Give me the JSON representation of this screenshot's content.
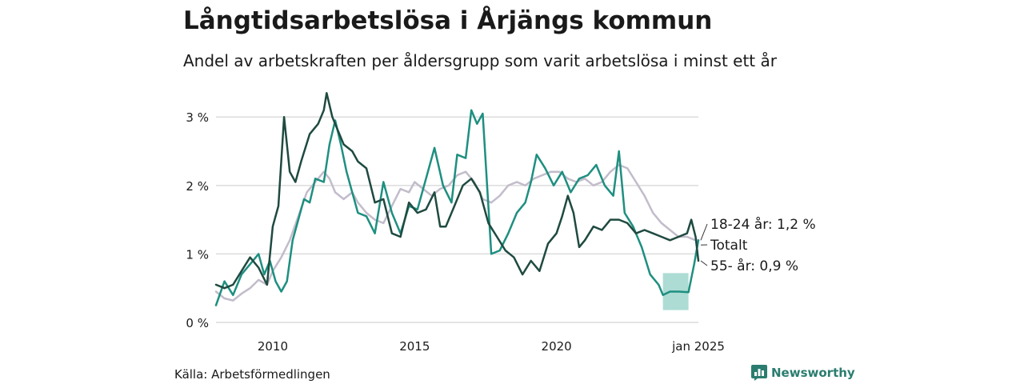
{
  "title": "Långtidsarbetslösa i Årjängs kommun",
  "subtitle": "Andel av arbetskraften per åldersgrupp som varit arbetslösa i minst ett år",
  "source": "Källa: Arbetsförmedlingen",
  "brand": "Newsworthy",
  "colors": {
    "total": "#c2bccb",
    "young": "#1e8f80",
    "old": "#1f4a40",
    "band": "#9fd6cc",
    "grid": "#dcdcdc"
  },
  "chart_data": {
    "type": "line",
    "x_unit": "year (decimal)",
    "xlim": [
      2008.0,
      2025.0
    ],
    "ylim": [
      0,
      3.4
    ],
    "y_ticks": [
      0,
      1,
      2,
      3
    ],
    "y_tick_labels": [
      "0 %",
      "1 %",
      "2 %",
      "3 %"
    ],
    "x_ticks": [
      2010,
      2015,
      2020,
      2025
    ],
    "x_tick_labels": [
      "2010",
      "2015",
      "2020",
      "jan 2025"
    ],
    "end_labels": [
      "18-24 år: 1,2 %",
      "Totalt",
      "55- år: 0,9 %"
    ],
    "uncertainty_band": {
      "series": "18-24 år",
      "x": [
        2023.75,
        2024.65
      ],
      "low": 0.18,
      "high": 0.72
    },
    "series": [
      {
        "name": "Totalt",
        "color_key": "total",
        "points": [
          [
            2008.0,
            0.45
          ],
          [
            2008.3,
            0.35
          ],
          [
            2008.6,
            0.32
          ],
          [
            2008.9,
            0.42
          ],
          [
            2009.2,
            0.5
          ],
          [
            2009.5,
            0.62
          ],
          [
            2009.8,
            0.55
          ],
          [
            2010.0,
            0.75
          ],
          [
            2010.3,
            0.95
          ],
          [
            2010.6,
            1.2
          ],
          [
            2010.9,
            1.55
          ],
          [
            2011.2,
            1.9
          ],
          [
            2011.5,
            2.05
          ],
          [
            2011.8,
            2.2
          ],
          [
            2012.0,
            2.1
          ],
          [
            2012.2,
            1.9
          ],
          [
            2012.5,
            1.8
          ],
          [
            2012.8,
            1.9
          ],
          [
            2013.0,
            1.75
          ],
          [
            2013.3,
            1.6
          ],
          [
            2013.6,
            1.5
          ],
          [
            2013.9,
            1.45
          ],
          [
            2014.2,
            1.7
          ],
          [
            2014.5,
            1.95
          ],
          [
            2014.8,
            1.9
          ],
          [
            2015.0,
            2.05
          ],
          [
            2015.3,
            1.95
          ],
          [
            2015.6,
            1.85
          ],
          [
            2015.9,
            1.95
          ],
          [
            2016.2,
            2.0
          ],
          [
            2016.5,
            2.15
          ],
          [
            2016.8,
            2.2
          ],
          [
            2017.1,
            2.05
          ],
          [
            2017.4,
            1.8
          ],
          [
            2017.7,
            1.75
          ],
          [
            2018.0,
            1.85
          ],
          [
            2018.3,
            2.0
          ],
          [
            2018.6,
            2.05
          ],
          [
            2018.9,
            2.0
          ],
          [
            2019.2,
            2.1
          ],
          [
            2019.5,
            2.15
          ],
          [
            2019.8,
            2.2
          ],
          [
            2020.1,
            2.2
          ],
          [
            2020.4,
            2.1
          ],
          [
            2020.7,
            2.05
          ],
          [
            2021.0,
            2.1
          ],
          [
            2021.3,
            2.0
          ],
          [
            2021.6,
            2.05
          ],
          [
            2021.9,
            2.2
          ],
          [
            2022.2,
            2.3
          ],
          [
            2022.5,
            2.25
          ],
          [
            2022.8,
            2.05
          ],
          [
            2023.1,
            1.85
          ],
          [
            2023.4,
            1.6
          ],
          [
            2023.7,
            1.45
          ],
          [
            2024.0,
            1.35
          ],
          [
            2024.3,
            1.25
          ],
          [
            2024.6,
            1.25
          ],
          [
            2024.9,
            1.2
          ],
          [
            2025.0,
            1.2
          ]
        ]
      },
      {
        "name": "18-24 år",
        "color_key": "young",
        "points": [
          [
            2008.0,
            0.25
          ],
          [
            2008.3,
            0.6
          ],
          [
            2008.6,
            0.4
          ],
          [
            2008.9,
            0.7
          ],
          [
            2009.2,
            0.85
          ],
          [
            2009.5,
            1.0
          ],
          [
            2009.7,
            0.7
          ],
          [
            2009.9,
            0.9
          ],
          [
            2010.1,
            0.6
          ],
          [
            2010.3,
            0.45
          ],
          [
            2010.5,
            0.6
          ],
          [
            2010.7,
            1.2
          ],
          [
            2010.9,
            1.5
          ],
          [
            2011.1,
            1.8
          ],
          [
            2011.3,
            1.75
          ],
          [
            2011.5,
            2.1
          ],
          [
            2011.8,
            2.05
          ],
          [
            2012.0,
            2.6
          ],
          [
            2012.2,
            2.95
          ],
          [
            2012.4,
            2.6
          ],
          [
            2012.6,
            2.2
          ],
          [
            2012.8,
            1.9
          ],
          [
            2013.0,
            1.6
          ],
          [
            2013.3,
            1.55
          ],
          [
            2013.6,
            1.3
          ],
          [
            2013.9,
            2.05
          ],
          [
            2014.2,
            1.6
          ],
          [
            2014.5,
            1.3
          ],
          [
            2014.8,
            1.7
          ],
          [
            2015.1,
            1.65
          ],
          [
            2015.4,
            2.1
          ],
          [
            2015.7,
            2.55
          ],
          [
            2016.0,
            2.0
          ],
          [
            2016.3,
            1.75
          ],
          [
            2016.5,
            2.45
          ],
          [
            2016.8,
            2.4
          ],
          [
            2017.0,
            3.1
          ],
          [
            2017.2,
            2.9
          ],
          [
            2017.4,
            3.05
          ],
          [
            2017.7,
            1.0
          ],
          [
            2018.0,
            1.05
          ],
          [
            2018.3,
            1.3
          ],
          [
            2018.6,
            1.6
          ],
          [
            2018.9,
            1.75
          ],
          [
            2019.1,
            2.05
          ],
          [
            2019.3,
            2.45
          ],
          [
            2019.6,
            2.25
          ],
          [
            2019.9,
            2.0
          ],
          [
            2020.2,
            2.2
          ],
          [
            2020.5,
            1.9
          ],
          [
            2020.8,
            2.1
          ],
          [
            2021.1,
            2.15
          ],
          [
            2021.4,
            2.3
          ],
          [
            2021.7,
            2.0
          ],
          [
            2022.0,
            1.85
          ],
          [
            2022.2,
            2.5
          ],
          [
            2022.4,
            1.6
          ],
          [
            2022.7,
            1.4
          ],
          [
            2023.0,
            1.1
          ],
          [
            2023.3,
            0.7
          ],
          [
            2023.6,
            0.55
          ],
          [
            2023.75,
            0.4
          ],
          [
            2024.0,
            0.45
          ],
          [
            2024.3,
            0.45
          ],
          [
            2024.65,
            0.44
          ],
          [
            2024.85,
            0.85
          ],
          [
            2025.0,
            1.2
          ]
        ]
      },
      {
        "name": "55- år",
        "color_key": "old",
        "points": [
          [
            2008.0,
            0.55
          ],
          [
            2008.3,
            0.5
          ],
          [
            2008.6,
            0.55
          ],
          [
            2008.9,
            0.75
          ],
          [
            2009.2,
            0.95
          ],
          [
            2009.5,
            0.8
          ],
          [
            2009.8,
            0.55
          ],
          [
            2010.0,
            1.4
          ],
          [
            2010.2,
            1.7
          ],
          [
            2010.4,
            3.0
          ],
          [
            2010.6,
            2.2
          ],
          [
            2010.8,
            2.05
          ],
          [
            2011.0,
            2.35
          ],
          [
            2011.3,
            2.75
          ],
          [
            2011.6,
            2.9
          ],
          [
            2011.8,
            3.1
          ],
          [
            2011.9,
            3.35
          ],
          [
            2012.1,
            3.0
          ],
          [
            2012.3,
            2.8
          ],
          [
            2012.5,
            2.6
          ],
          [
            2012.8,
            2.5
          ],
          [
            2013.0,
            2.35
          ],
          [
            2013.3,
            2.25
          ],
          [
            2013.6,
            1.75
          ],
          [
            2013.9,
            1.8
          ],
          [
            2014.2,
            1.3
          ],
          [
            2014.5,
            1.25
          ],
          [
            2014.8,
            1.75
          ],
          [
            2015.1,
            1.6
          ],
          [
            2015.4,
            1.65
          ],
          [
            2015.7,
            1.9
          ],
          [
            2015.9,
            1.4
          ],
          [
            2016.1,
            1.4
          ],
          [
            2016.4,
            1.7
          ],
          [
            2016.7,
            2.0
          ],
          [
            2017.0,
            2.1
          ],
          [
            2017.3,
            1.9
          ],
          [
            2017.6,
            1.45
          ],
          [
            2017.9,
            1.25
          ],
          [
            2018.2,
            1.05
          ],
          [
            2018.5,
            0.95
          ],
          [
            2018.8,
            0.7
          ],
          [
            2019.1,
            0.9
          ],
          [
            2019.4,
            0.75
          ],
          [
            2019.7,
            1.15
          ],
          [
            2020.0,
            1.3
          ],
          [
            2020.2,
            1.55
          ],
          [
            2020.4,
            1.85
          ],
          [
            2020.6,
            1.6
          ],
          [
            2020.8,
            1.1
          ],
          [
            2021.0,
            1.2
          ],
          [
            2021.3,
            1.4
          ],
          [
            2021.6,
            1.35
          ],
          [
            2021.9,
            1.5
          ],
          [
            2022.2,
            1.5
          ],
          [
            2022.5,
            1.45
          ],
          [
            2022.8,
            1.3
          ],
          [
            2023.1,
            1.35
          ],
          [
            2023.4,
            1.3
          ],
          [
            2023.7,
            1.25
          ],
          [
            2024.0,
            1.2
          ],
          [
            2024.3,
            1.25
          ],
          [
            2024.6,
            1.3
          ],
          [
            2024.75,
            1.5
          ],
          [
            2024.9,
            1.25
          ],
          [
            2025.0,
            0.9
          ]
        ]
      }
    ]
  }
}
